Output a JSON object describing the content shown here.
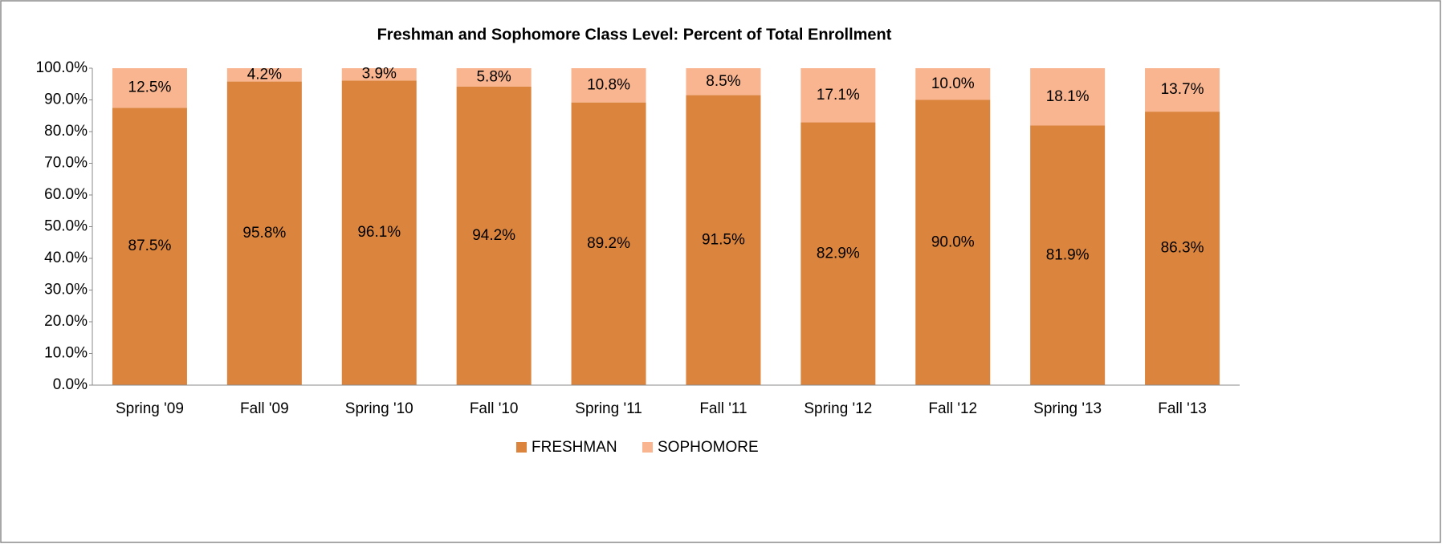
{
  "chart_data": {
    "type": "stacked_bar",
    "title": "Freshman and Sophomore Class Level: Percent of Total Enrollment",
    "categories": [
      "Spring '09",
      "Fall '09",
      "Spring '10",
      "Fall '10",
      "Spring '11",
      "Fall '11",
      "Spring '12",
      "Fall '12",
      "Spring '13",
      "Fall '13"
    ],
    "series": [
      {
        "name": "FRESHMAN",
        "color": "#db843d",
        "values": [
          87.5,
          95.8,
          96.1,
          94.2,
          89.2,
          91.5,
          82.9,
          90.0,
          81.9,
          86.3
        ],
        "value_labels": [
          "87.5%",
          "95.8%",
          "96.1%",
          "94.2%",
          "89.2%",
          "91.5%",
          "82.9%",
          "90.0%",
          "81.9%",
          "86.3%"
        ]
      },
      {
        "name": "SOPHOMORE",
        "color": "#f8b58f",
        "values": [
          12.5,
          4.2,
          3.9,
          5.8,
          10.8,
          8.5,
          17.1,
          10.0,
          18.1,
          13.7
        ],
        "value_labels": [
          "12.5%",
          "4.2%",
          "3.9%",
          "5.8%",
          "10.8%",
          "8.5%",
          "17.1%",
          "10.0%",
          "18.1%",
          "13.7%"
        ]
      }
    ],
    "ylim": [
      0,
      100
    ],
    "yticks": [
      {
        "value": 0,
        "label": "0.0%"
      },
      {
        "value": 10,
        "label": "10.0%"
      },
      {
        "value": 20,
        "label": "20.0%"
      },
      {
        "value": 30,
        "label": "30.0%"
      },
      {
        "value": 40,
        "label": "40.0%"
      },
      {
        "value": 50,
        "label": "50.0%"
      },
      {
        "value": 60,
        "label": "60.0%"
      },
      {
        "value": 70,
        "label": "70.0%"
      },
      {
        "value": 80,
        "label": "80.0%"
      },
      {
        "value": 90,
        "label": "90.0%"
      },
      {
        "value": 100,
        "label": "100.0%"
      }
    ],
    "grid": false,
    "legend": "bottom"
  }
}
